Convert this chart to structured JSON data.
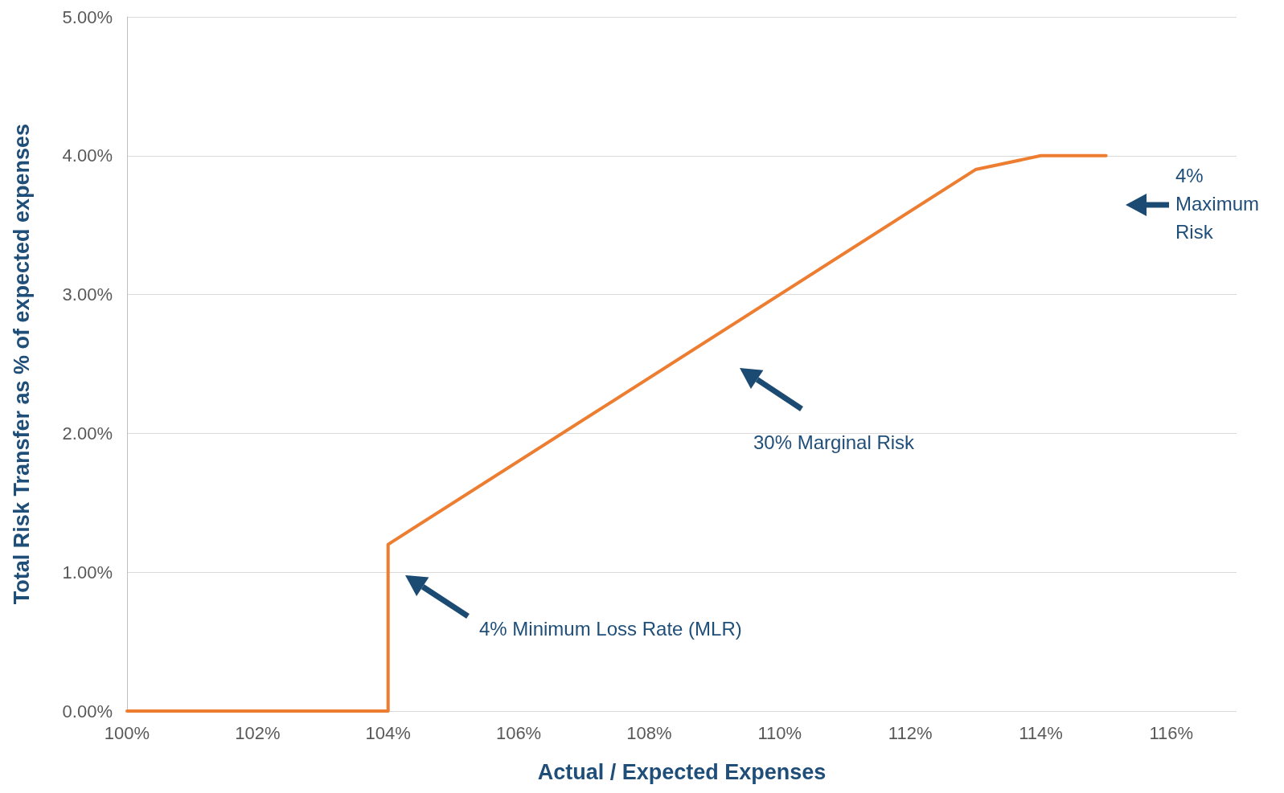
{
  "chart_data": {
    "type": "line",
    "xlabel": "Actual / Expected Expenses",
    "ylabel": "Total Risk Transfer as % of expected expenses",
    "x": [
      100,
      104,
      104,
      113,
      114,
      115
    ],
    "series": [
      {
        "color": "#ed7d31",
        "values": [
          0,
          0,
          1.2,
          3.9,
          4.0,
          4.0
        ]
      }
    ],
    "xlim": [
      100,
      117
    ],
    "xticks": [
      {
        "value": 100,
        "label": "100%"
      },
      {
        "value": 102,
        "label": "102%"
      },
      {
        "value": 104,
        "label": "104%"
      },
      {
        "value": 106,
        "label": "106%"
      },
      {
        "value": 108,
        "label": "108%"
      },
      {
        "value": 110,
        "label": "110%"
      },
      {
        "value": 112,
        "label": "112%"
      },
      {
        "value": 114,
        "label": "114%"
      },
      {
        "value": 116,
        "label": "116%"
      }
    ],
    "ylim": [
      0,
      5
    ],
    "yticks": [
      {
        "value": 0,
        "label": "0.00%"
      },
      {
        "value": 1,
        "label": "1.00%"
      },
      {
        "value": 2,
        "label": "2.00%"
      },
      {
        "value": 3,
        "label": "3.00%"
      },
      {
        "value": 4,
        "label": "4.00%"
      },
      {
        "value": 5,
        "label": "5.00%"
      }
    ],
    "annotations": [
      "4% Maximum Risk",
      "30% Marginal Risk",
      "4% Minimum Loss Rate (MLR)"
    ],
    "grid": "y",
    "marker": "none",
    "line_style": "solid"
  }
}
